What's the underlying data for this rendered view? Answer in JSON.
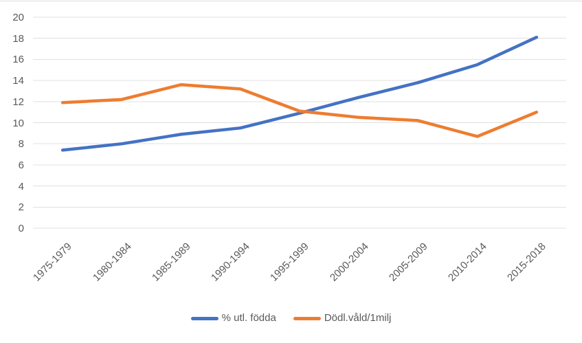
{
  "chart_data": {
    "type": "line",
    "title": "",
    "xlabel": "",
    "ylabel": "",
    "categories": [
      "1975-1979",
      "1980-1984",
      "1985-1989",
      "1990-1994",
      "1995-1999",
      "2000-2004",
      "2005-2009",
      "2010-2014",
      "2015-2018"
    ],
    "series": [
      {
        "name": "% utl. födda",
        "color": "#4472C4",
        "values": [
          7.4,
          8.0,
          8.9,
          9.5,
          10.9,
          12.4,
          13.8,
          15.5,
          18.1
        ]
      },
      {
        "name": "Dödl.våld/1milj",
        "color": "#ED7D31",
        "values": [
          11.9,
          12.2,
          13.6,
          13.2,
          11.1,
          10.5,
          10.2,
          8.7,
          11.0
        ]
      }
    ],
    "ylim": [
      0,
      20
    ],
    "ytick_step": 2,
    "ytick_labels": [
      "0",
      "2",
      "4",
      "6",
      "8",
      "10",
      "12",
      "14",
      "16",
      "18",
      "20"
    ],
    "grid": true,
    "legend_position": "bottom"
  },
  "styles": {
    "background": "#FFFFFF",
    "grid_color": "#E0E0E0",
    "top_border_color": "#DBDBDB",
    "axis_label_color": "#595959",
    "legend_text_color": "#595959"
  }
}
